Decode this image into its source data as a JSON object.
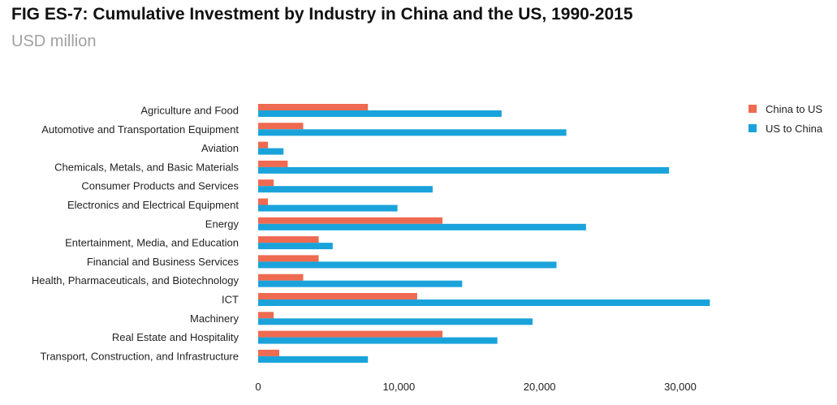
{
  "title": "FIG ES-7: Cumulative Investment by Industry in China and the US, 1990-2015",
  "subtitle": "USD million",
  "chart_data": {
    "type": "bar",
    "orientation": "horizontal",
    "title": "FIG ES-7: Cumulative Investment by Industry in China and the US, 1990-2015",
    "subtitle": "USD million",
    "xlabel": "",
    "ylabel": "",
    "xlim": [
      0,
      32000
    ],
    "xticks": [
      0,
      10000,
      20000,
      30000
    ],
    "xtick_labels": [
      "0",
      "10,000",
      "20,000",
      "30,000"
    ],
    "grid": false,
    "legend_position": "top-right",
    "categories": [
      "Agriculture and Food",
      "Automotive and Transportation Equipment",
      "Aviation",
      "Chemicals, Metals, and Basic Materials",
      "Consumer Products and Services",
      "Electronics and Electrical Equipment",
      "Energy",
      "Entertainment, Media, and Education",
      "Financial and Business Services",
      "Health, Pharmaceuticals, and Biotechnology",
      "ICT",
      "Machinery",
      "Real Estate and Hospitality",
      "Transport, Construction, and Infrastructure"
    ],
    "series": [
      {
        "name": "China to US",
        "color": "#ee6a50",
        "values": [
          7800,
          3200,
          700,
          2100,
          1100,
          700,
          13100,
          4300,
          4300,
          3200,
          11300,
          1100,
          13100,
          1500
        ]
      },
      {
        "name": "US to China",
        "color": "#1aa3db",
        "values": [
          17300,
          21900,
          1800,
          29200,
          12400,
          9900,
          23300,
          5300,
          21200,
          14500,
          32100,
          19500,
          17000,
          7800
        ]
      }
    ]
  }
}
